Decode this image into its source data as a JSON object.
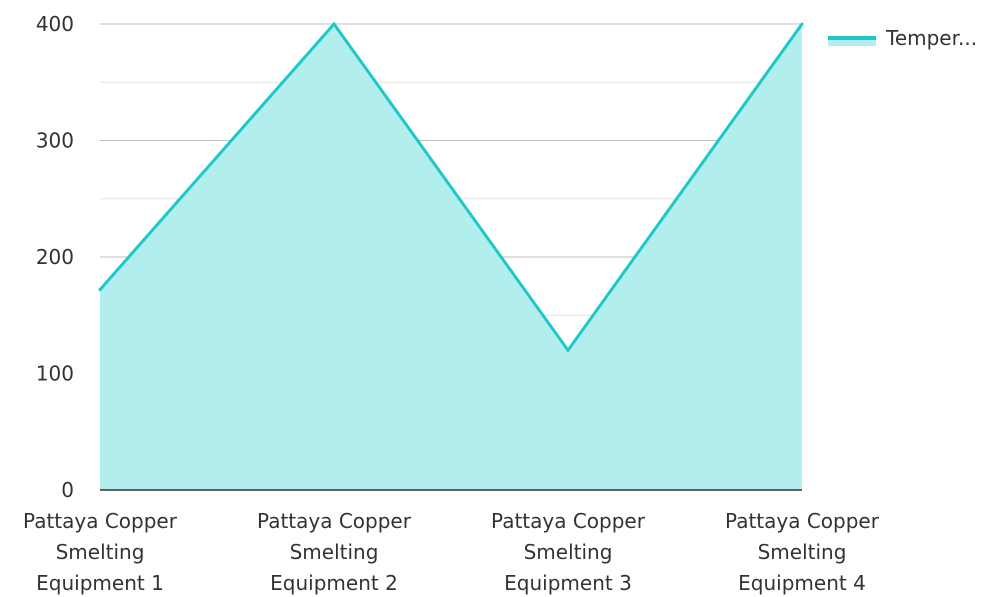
{
  "chart_data": {
    "type": "area",
    "title": "",
    "xlabel": "",
    "ylabel": "",
    "categories": [
      [
        "Pattaya Copper",
        "Smelting",
        "Equipment 1"
      ],
      [
        "Pattaya Copper",
        "Smelting",
        "Equipment 2"
      ],
      [
        "Pattaya Copper",
        "Smelting",
        "Equipment 3"
      ],
      [
        "Pattaya Copper",
        "Smelting",
        "Equipment 4"
      ]
    ],
    "series": [
      {
        "name": "Temper...",
        "values": [
          172,
          400,
          120,
          400
        ]
      }
    ],
    "ylim": [
      0,
      400
    ],
    "yticks": [
      0,
      100,
      200,
      300,
      400
    ],
    "grid": true,
    "legend_position": "top-right",
    "colors": {
      "line": "#1ec8c8",
      "fill": "#b2eeee",
      "grid_major": "#bfbfbf",
      "grid_minor": "#e3e3e3",
      "axis": "#333333"
    }
  }
}
